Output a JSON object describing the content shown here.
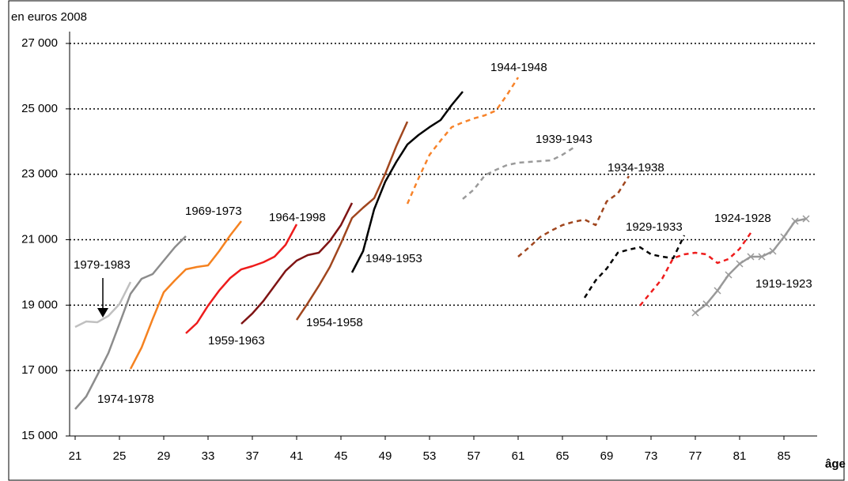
{
  "chart_data": {
    "type": "line",
    "y_axis_label": "en euros 2008",
    "x_axis_label": "âge",
    "xlim": [
      20.5,
      88
    ],
    "xticks": [
      21,
      25,
      29,
      33,
      37,
      41,
      45,
      49,
      53,
      57,
      61,
      65,
      69,
      73,
      77,
      81,
      85
    ],
    "ylim": [
      15000,
      27000
    ],
    "yticks": [
      {
        "value": 15000,
        "label": "15 000"
      },
      {
        "value": 17000,
        "label": "17 000"
      },
      {
        "value": 19000,
        "label": "19 000"
      },
      {
        "value": 21000,
        "label": "21 000"
      },
      {
        "value": 23000,
        "label": "23 000"
      },
      {
        "value": 25000,
        "label": "25 000"
      },
      {
        "value": 27000,
        "label": "27 000"
      }
    ],
    "grid": true,
    "series": [
      {
        "name": "1979-1983",
        "color": "#c0c0c0",
        "dashed": false,
        "x": [
          21,
          22,
          23,
          24,
          25,
          26
        ],
        "values": [
          18332,
          18501,
          18477,
          18670,
          19033,
          19708
        ]
      },
      {
        "name": "1974-1978",
        "color": "#8c8c8c",
        "dashed": false,
        "x": [
          21,
          22,
          23,
          24,
          25,
          26,
          27,
          28,
          29,
          30,
          31
        ],
        "values": [
          15821,
          16207,
          16859,
          17535,
          18429,
          19346,
          19805,
          19950,
          20360,
          20771,
          21109
        ]
      },
      {
        "name": "1969-1973",
        "color": "#f58220",
        "dashed": false,
        "x": [
          26,
          27,
          28,
          29,
          30,
          31,
          32,
          33,
          34,
          35,
          36
        ],
        "values": [
          17052,
          17704,
          18574,
          19394,
          19756,
          20094,
          20167,
          20215,
          20650,
          21133,
          21567
        ]
      },
      {
        "name": "1964-1998",
        "color": "#ee1c1c",
        "dashed": false,
        "x": [
          31,
          32,
          33,
          34,
          35,
          36,
          37,
          38,
          39,
          40,
          41
        ],
        "values": [
          18139,
          18453,
          18984,
          19443,
          19829,
          20094,
          20191,
          20312,
          20481,
          20843,
          21471
        ]
      },
      {
        "name": "1959-1963",
        "color": "#7f1414",
        "dashed": false,
        "x": [
          36,
          37,
          38,
          39,
          40,
          41,
          42,
          43,
          44,
          45,
          46
        ],
        "values": [
          18429,
          18743,
          19129,
          19588,
          20047,
          20360,
          20529,
          20602,
          20964,
          21447,
          22123
        ]
      },
      {
        "name": "1954-1958",
        "color": "#a0461e",
        "dashed": false,
        "x": [
          41,
          42,
          43,
          44,
          45,
          46,
          47,
          48,
          49,
          50,
          51
        ],
        "values": [
          18549,
          19056,
          19588,
          20167,
          20891,
          21664,
          21978,
          22268,
          23016,
          23862,
          24610
        ]
      },
      {
        "name": "1949-1953",
        "color": "#000000",
        "dashed": false,
        "x": [
          46,
          47,
          48,
          49,
          50,
          51,
          52,
          53,
          54,
          55,
          56
        ],
        "values": [
          19998,
          20650,
          21930,
          22775,
          23378,
          23910,
          24199,
          24441,
          24658,
          25117,
          25527
        ]
      },
      {
        "name": "1944-1948",
        "color": "#f7832a",
        "dashed": true,
        "x": [
          51,
          52,
          53,
          54,
          55,
          56,
          57,
          58,
          59,
          60,
          61
        ],
        "values": [
          22099,
          22872,
          23596,
          24031,
          24441,
          24586,
          24707,
          24803,
          24948,
          25431,
          25962
        ]
      },
      {
        "name": "1939-1943",
        "color": "#9a9a9a",
        "dashed": true,
        "x": [
          56,
          57,
          58,
          59,
          60,
          61,
          62,
          63,
          64,
          65,
          66
        ],
        "values": [
          22244,
          22534,
          22968,
          23137,
          23282,
          23354,
          23378,
          23403,
          23427,
          23596,
          23813
        ]
      },
      {
        "name": "1934-1938",
        "color": "#a0461e",
        "dashed": true,
        "x": [
          61,
          62,
          63,
          64,
          65,
          66,
          67,
          68,
          69,
          70,
          71
        ],
        "values": [
          20481,
          20771,
          21085,
          21278,
          21447,
          21544,
          21616,
          21447,
          22172,
          22413,
          22944
        ]
      },
      {
        "name": "1929-1933",
        "color": "#000000",
        "dashed": true,
        "x": [
          67,
          68,
          69,
          70,
          71,
          72,
          73,
          74,
          75,
          76
        ],
        "values": [
          19226,
          19756,
          20118,
          20602,
          20698,
          20771,
          20553,
          20481,
          20433,
          21133
        ]
      },
      {
        "name": "1924-1928",
        "color": "#ee1c1c",
        "dashed": true,
        "x": [
          72,
          73,
          74,
          75,
          76,
          77,
          78,
          79,
          80,
          81,
          82
        ],
        "values": [
          18984,
          19394,
          19805,
          20433,
          20553,
          20602,
          20553,
          20288,
          20409,
          20722,
          21206
        ]
      },
      {
        "name": "1919-1923",
        "color": "#999999",
        "dashed": false,
        "marker": "x",
        "x": [
          77,
          78,
          79,
          80,
          81,
          82,
          83,
          84,
          85,
          86,
          87
        ],
        "values": [
          18767,
          19033,
          19443,
          19926,
          20264,
          20481,
          20481,
          20650,
          21085,
          21567,
          21640
        ]
      }
    ]
  }
}
